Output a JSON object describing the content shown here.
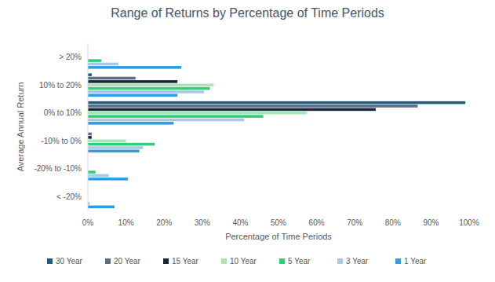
{
  "chart_data": {
    "type": "bar",
    "orientation": "horizontal",
    "title": "Range of Returns by Percentage of Time Periods",
    "x_label": "Percentage of Time Periods",
    "y_label": "Average Annual Return",
    "categories": [
      "> 20%",
      "10% to 20%",
      "0% to 10%",
      "-10% to 0%",
      "-20% to -10%",
      "< -20%"
    ],
    "series": [
      {
        "name": "30 Year",
        "color": "#1b5f7d",
        "values": [
          0,
          1,
          99,
          0,
          0,
          0
        ]
      },
      {
        "name": "20 Year",
        "color": "#5f6b80",
        "values": [
          0,
          12.5,
          86.5,
          1,
          0,
          0
        ]
      },
      {
        "name": "15 Year",
        "color": "#17263f",
        "values": [
          0,
          23.5,
          75.5,
          1,
          0,
          0
        ]
      },
      {
        "name": "10 Year",
        "color": "#a8e6b8",
        "values": [
          0,
          33,
          57.5,
          10,
          0,
          0
        ]
      },
      {
        "name": "5 Year",
        "color": "#2fcf78",
        "values": [
          3.5,
          32,
          46,
          17.5,
          2,
          0
        ]
      },
      {
        "name": "3 Year",
        "color": "#a9c7e6",
        "values": [
          8,
          30.5,
          41,
          14.5,
          5.5,
          0.5
        ]
      },
      {
        "name": "1 Year",
        "color": "#2f9de0",
        "values": [
          24.5,
          23.5,
          22.5,
          13.5,
          10.5,
          7
        ]
      }
    ],
    "xlim": [
      0,
      100
    ],
    "xticks": [
      {
        "value": 0,
        "label": "0%"
      },
      {
        "value": 10,
        "label": "10%"
      },
      {
        "value": 20,
        "label": "20%"
      },
      {
        "value": 30,
        "label": "30%"
      },
      {
        "value": 40,
        "label": "40%"
      },
      {
        "value": 50,
        "label": "50%"
      },
      {
        "value": 60,
        "label": "60%"
      },
      {
        "value": 70,
        "label": "70%"
      },
      {
        "value": 80,
        "label": "80%"
      },
      {
        "value": 90,
        "label": "90%"
      },
      {
        "value": 100,
        "label": "100%"
      }
    ],
    "grid": false,
    "legend": "bottom"
  }
}
